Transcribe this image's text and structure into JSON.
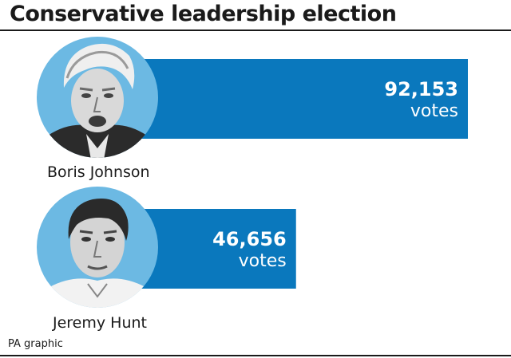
{
  "title": "Conservative leadership election",
  "credit": "PA graphic",
  "colors": {
    "bar": "#0a78bd",
    "circle": "#6cb9e3",
    "rule": "#1a1a1a"
  },
  "chart_data": {
    "type": "bar",
    "orientation": "horizontal",
    "title": "Conservative leadership election",
    "categories": [
      "Boris Johnson",
      "Jeremy Hunt"
    ],
    "values": [
      92153,
      46656
    ],
    "value_labels": [
      "92,153",
      "46,656"
    ],
    "unit_label": "votes",
    "grid": false,
    "legend": "none"
  }
}
